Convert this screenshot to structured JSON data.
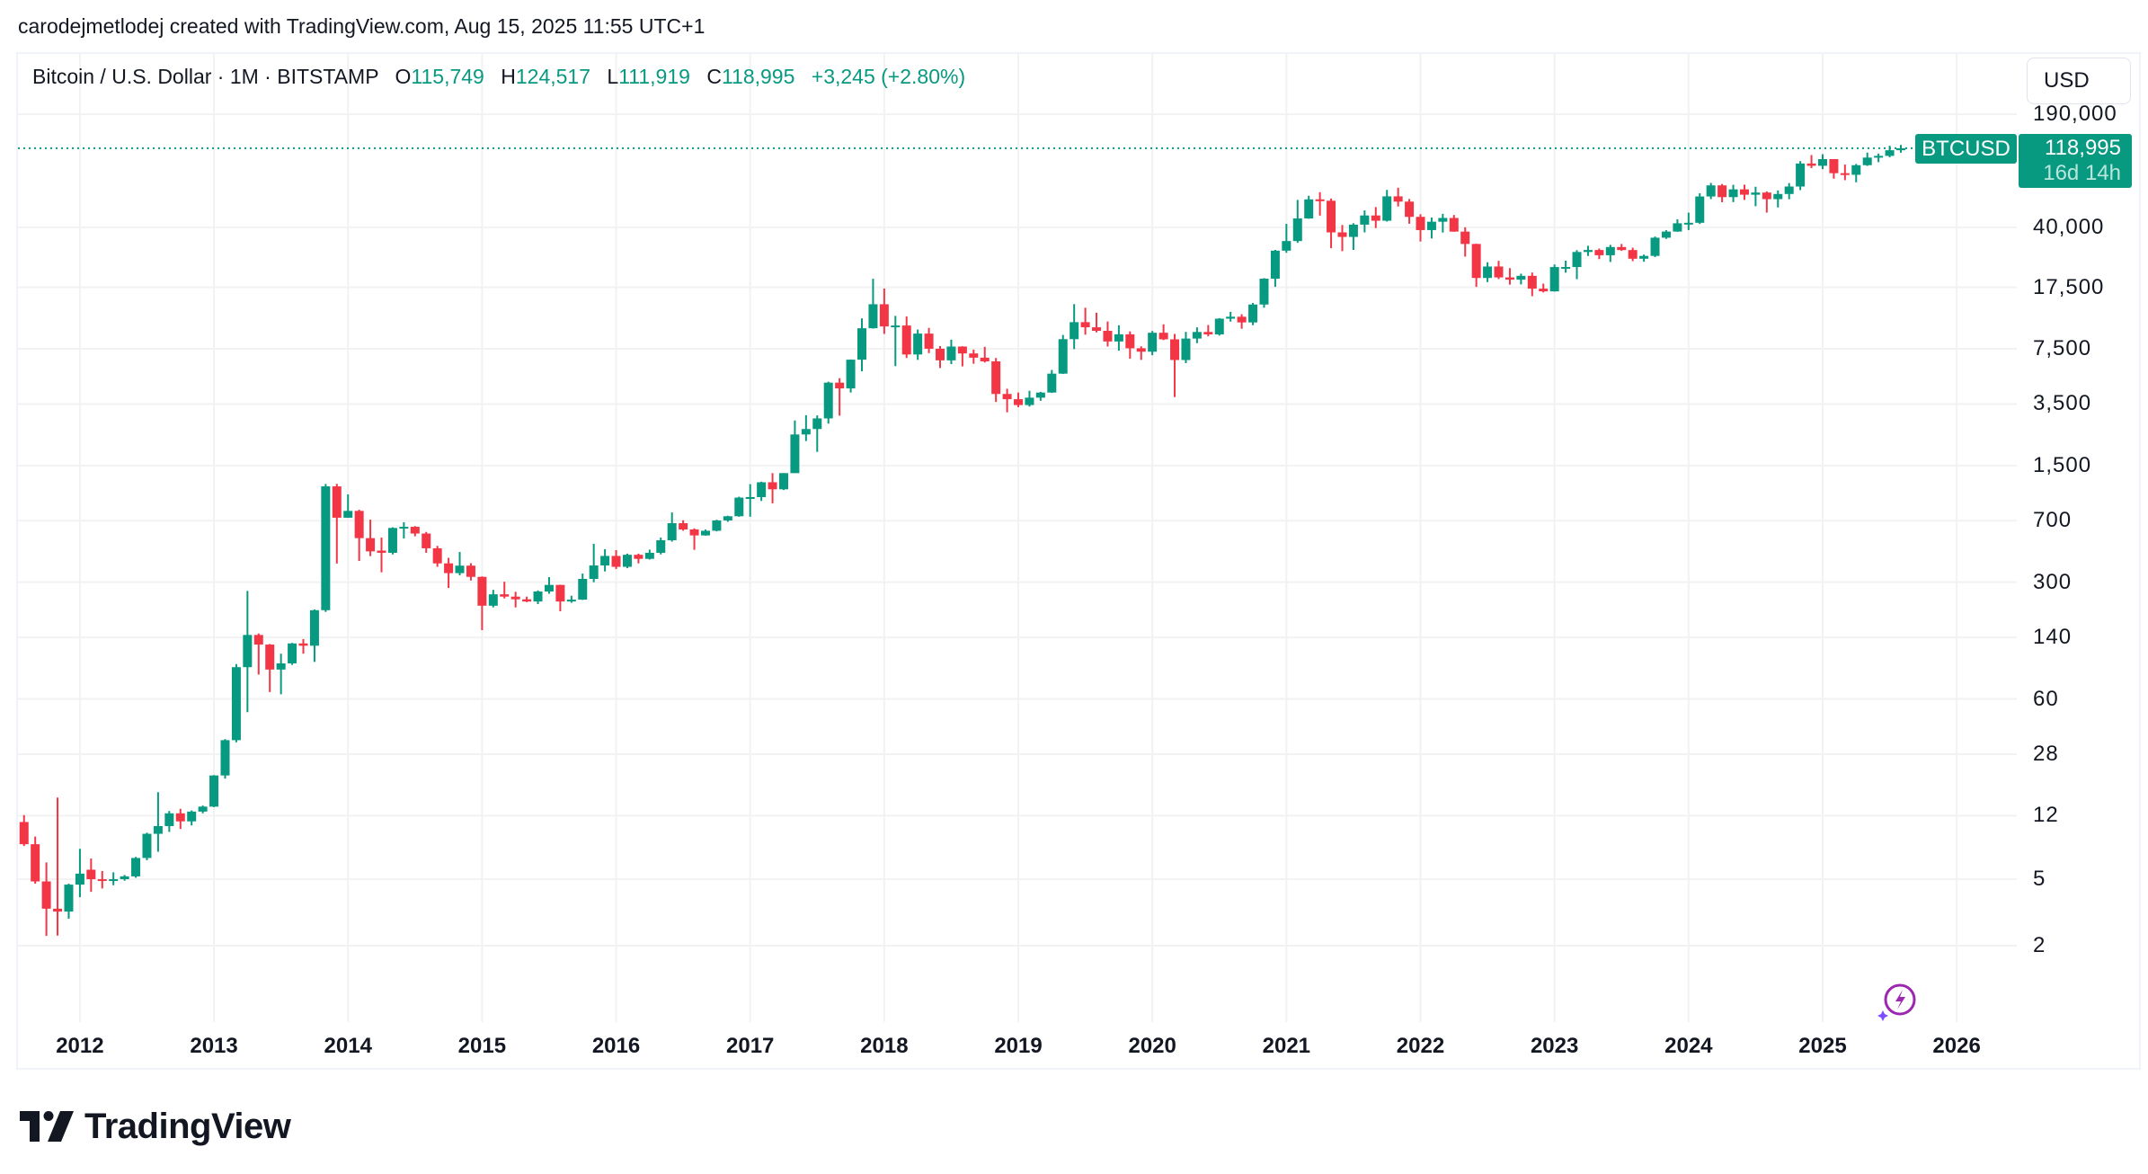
{
  "credit": "carodejmetlodej created with TradingView.com, Aug 15, 2025 11:55 UTC+1",
  "legend": {
    "symbol_desc": "Bitcoin / U.S. Dollar · 1M · BITSTAMP",
    "o_label": "O",
    "o": "115,749",
    "h_label": "H",
    "h": "124,517",
    "l_label": "L",
    "l": "111,919",
    "c_label": "C",
    "c": "118,995",
    "change": "+3,245 (+2.80%)"
  },
  "currency_button": "USD",
  "last_price": {
    "symbol": "BTCUSD",
    "price": "118,995",
    "countdown": "16d 14h",
    "value": 118995
  },
  "brand": "TradingView",
  "colors": {
    "up": "#089981",
    "down": "#F23645",
    "grid": "#f2f2f2",
    "accent_icon": "#9c27b0"
  },
  "icons": {
    "logo": "tradingview-logo-icon",
    "bolt": "lightning-sparkle-icon"
  },
  "chart_data": {
    "type": "candlestick",
    "interval": "1M",
    "y_scale": "log",
    "ylim": [
      1.2,
      260000
    ],
    "grid": true,
    "ytick_labels": [
      "190,000",
      "40,000",
      "17,500",
      "7,500",
      "3,500",
      "1,500",
      "700",
      "300",
      "140",
      "60",
      "28",
      "12",
      "5",
      "2"
    ],
    "ytick_values": [
      190000,
      40000,
      17500,
      7500,
      3500,
      1500,
      700,
      300,
      140,
      60,
      28,
      12,
      5,
      2
    ],
    "xtick_labels": [
      "2012",
      "2013",
      "2014",
      "2015",
      "2016",
      "2017",
      "2018",
      "2019",
      "2020",
      "2021",
      "2022",
      "2023",
      "2024",
      "2025",
      "2026"
    ],
    "columns": [
      "month",
      "open",
      "high",
      "low",
      "close"
    ],
    "candles": [
      [
        "2011-08",
        11,
        12.1,
        7.9,
        8.1
      ],
      [
        "2011-09",
        8.1,
        9.0,
        4.7,
        4.85
      ],
      [
        "2011-10",
        4.85,
        6.3,
        2.29,
        3.33
      ],
      [
        "2011-11",
        3.33,
        15.4,
        2.3,
        3.2
      ],
      [
        "2011-12",
        3.2,
        4.7,
        2.9,
        4.64
      ],
      [
        "2012-01",
        4.64,
        7.6,
        3.9,
        5.4
      ],
      [
        "2012-02",
        5.7,
        6.65,
        4.2,
        5.0
      ],
      [
        "2012-03",
        5.0,
        5.6,
        4.4,
        4.9
      ],
      [
        "2012-04",
        4.9,
        5.5,
        4.6,
        5.0
      ],
      [
        "2012-05",
        5.0,
        5.3,
        4.9,
        5.2
      ],
      [
        "2012-06",
        5.2,
        6.8,
        5.1,
        6.7
      ],
      [
        "2012-07",
        6.7,
        9.5,
        6.5,
        9.35
      ],
      [
        "2012-08",
        9.35,
        16.6,
        7.3,
        10.4
      ],
      [
        "2012-09",
        10.4,
        12.8,
        9.6,
        12.4
      ],
      [
        "2012-10",
        12.4,
        13.2,
        10.0,
        11.1
      ],
      [
        "2012-11",
        11.1,
        12.9,
        10.5,
        12.7
      ],
      [
        "2012-12",
        12.7,
        13.8,
        12.4,
        13.6
      ],
      [
        "2013-01",
        13.6,
        21,
        13.5,
        20.9
      ],
      [
        "2013-02",
        20.9,
        34.5,
        20,
        34
      ],
      [
        "2013-03",
        34,
        97,
        33,
        93
      ],
      [
        "2013-04",
        93,
        266,
        50,
        145
      ],
      [
        "2013-05",
        145,
        148,
        84,
        127
      ],
      [
        "2013-06",
        127,
        128,
        66,
        90
      ],
      [
        "2013-07",
        90,
        112,
        64,
        98
      ],
      [
        "2013-08",
        98,
        130,
        96,
        129
      ],
      [
        "2013-09",
        129,
        137,
        112,
        125
      ],
      [
        "2013-10",
        125,
        206,
        100,
        204
      ],
      [
        "2013-11",
        204,
        1163,
        199,
        1125
      ],
      [
        "2013-12",
        1125,
        1165,
        388,
        730
      ],
      [
        "2014-01",
        730,
        1007,
        730,
        802
      ],
      [
        "2014-02",
        802,
        815,
        402,
        551
      ],
      [
        "2014-03",
        551,
        711,
        430,
        459
      ],
      [
        "2014-04",
        464,
        555,
        344,
        450
      ],
      [
        "2014-05",
        450,
        640,
        440,
        634
      ],
      [
        "2014-06",
        634,
        686,
        548,
        644
      ],
      [
        "2014-07",
        644,
        650,
        565,
        587
      ],
      [
        "2014-08",
        587,
        600,
        450,
        479
      ],
      [
        "2014-09",
        479,
        495,
        371,
        389
      ],
      [
        "2014-10",
        389,
        420,
        277,
        340
      ],
      [
        "2014-11",
        340,
        455,
        330,
        377
      ],
      [
        "2014-12",
        377,
        390,
        307,
        323
      ],
      [
        "2015-01",
        323,
        325,
        155,
        217
      ],
      [
        "2015-02",
        217,
        270,
        212,
        254
      ],
      [
        "2015-03",
        254,
        302,
        240,
        246
      ],
      [
        "2015-04",
        246,
        263,
        212,
        237
      ],
      [
        "2015-05",
        237,
        246,
        228,
        230
      ],
      [
        "2015-06",
        230,
        268,
        222,
        264
      ],
      [
        "2015-07",
        264,
        322,
        256,
        289
      ],
      [
        "2015-08",
        289,
        290,
        201,
        230
      ],
      [
        "2015-09",
        230,
        249,
        226,
        236
      ],
      [
        "2015-10",
        236,
        338,
        235,
        314
      ],
      [
        "2015-11",
        314,
        509,
        300,
        378
      ],
      [
        "2015-12",
        378,
        473,
        348,
        431
      ],
      [
        "2016-01",
        431,
        467,
        360,
        371
      ],
      [
        "2016-02",
        371,
        445,
        364,
        438
      ],
      [
        "2016-03",
        438,
        445,
        389,
        414
      ],
      [
        "2016-04",
        414,
        470,
        410,
        450
      ],
      [
        "2016-05",
        450,
        555,
        440,
        535
      ],
      [
        "2016-06",
        535,
        785,
        525,
        677
      ],
      [
        "2016-07",
        677,
        705,
        610,
        621
      ],
      [
        "2016-08",
        621,
        630,
        469,
        572
      ],
      [
        "2016-09",
        572,
        620,
        570,
        610
      ],
      [
        "2016-10",
        610,
        710,
        605,
        703
      ],
      [
        "2016-11",
        703,
        750,
        690,
        745
      ],
      [
        "2016-12",
        745,
        975,
        740,
        963
      ],
      [
        "2017-01",
        963,
        1160,
        740,
        970
      ],
      [
        "2017-02",
        970,
        1200,
        920,
        1190
      ],
      [
        "2017-03",
        1190,
        1350,
        890,
        1080
      ],
      [
        "2017-04",
        1080,
        1350,
        1070,
        1350
      ],
      [
        "2017-05",
        1350,
        2790,
        1350,
        2300
      ],
      [
        "2017-06",
        2300,
        3000,
        2100,
        2480
      ],
      [
        "2017-07",
        2480,
        2990,
        1810,
        2870
      ],
      [
        "2017-08",
        2870,
        4760,
        2670,
        4700
      ],
      [
        "2017-09",
        4700,
        5000,
        2980,
        4340
      ],
      [
        "2017-10",
        4340,
        6470,
        4100,
        6450
      ],
      [
        "2017-11",
        6450,
        11400,
        5500,
        9950
      ],
      [
        "2017-12",
        9950,
        19666,
        9900,
        13850
      ],
      [
        "2018-01",
        13850,
        17200,
        9200,
        10200
      ],
      [
        "2018-02",
        10200,
        11800,
        5900,
        10330
      ],
      [
        "2018-03",
        10330,
        11700,
        6600,
        6930
      ],
      [
        "2018-04",
        6930,
        9770,
        6430,
        9240
      ],
      [
        "2018-05",
        9240,
        10000,
        7060,
        7500
      ],
      [
        "2018-06",
        7500,
        7780,
        5750,
        6390
      ],
      [
        "2018-07",
        6390,
        8500,
        6070,
        7730
      ],
      [
        "2018-08",
        7730,
        7760,
        5880,
        7030
      ],
      [
        "2018-09",
        7030,
        7410,
        6100,
        6630
      ],
      [
        "2018-10",
        6630,
        7700,
        6200,
        6300
      ],
      [
        "2018-11",
        6300,
        6600,
        3600,
        4020
      ],
      [
        "2018-12",
        4020,
        4320,
        3120,
        3740
      ],
      [
        "2019-01",
        3740,
        4100,
        3350,
        3450
      ],
      [
        "2019-02",
        3450,
        4200,
        3380,
        3820
      ],
      [
        "2019-03",
        3820,
        4140,
        3660,
        4100
      ],
      [
        "2019-04",
        4100,
        5600,
        4080,
        5320
      ],
      [
        "2019-05",
        5320,
        9070,
        5300,
        8560
      ],
      [
        "2019-06",
        8560,
        13880,
        7460,
        10820
      ],
      [
        "2019-07",
        10820,
        13200,
        9100,
        10080
      ],
      [
        "2019-08",
        10080,
        12330,
        9400,
        9600
      ],
      [
        "2019-09",
        9600,
        10920,
        7730,
        8290
      ],
      [
        "2019-10",
        8290,
        10370,
        7300,
        9150
      ],
      [
        "2019-11",
        9150,
        9530,
        6540,
        7550
      ],
      [
        "2019-12",
        7550,
        7750,
        6430,
        7200
      ],
      [
        "2020-01",
        7200,
        9580,
        6860,
        9350
      ],
      [
        "2020-02",
        9350,
        10500,
        8450,
        8540
      ],
      [
        "2020-03",
        8540,
        9200,
        3850,
        6420
      ],
      [
        "2020-04",
        6420,
        9460,
        6150,
        8630
      ],
      [
        "2020-05",
        8630,
        10070,
        8100,
        9450
      ],
      [
        "2020-06",
        9450,
        10400,
        8900,
        9140
      ],
      [
        "2020-07",
        9140,
        11440,
        8990,
        11350
      ],
      [
        "2020-08",
        11350,
        12470,
        10900,
        11660
      ],
      [
        "2020-09",
        11660,
        12070,
        9880,
        10780
      ],
      [
        "2020-10",
        10780,
        14100,
        10380,
        13800
      ],
      [
        "2020-11",
        13800,
        19860,
        13200,
        19700
      ],
      [
        "2020-12",
        19700,
        29300,
        17600,
        28990
      ],
      [
        "2021-01",
        28990,
        41950,
        28150,
        33100
      ],
      [
        "2021-02",
        33100,
        58350,
        32300,
        45200
      ],
      [
        "2021-03",
        45200,
        61800,
        45000,
        58800
      ],
      [
        "2021-04",
        58800,
        64900,
        47000,
        57700
      ],
      [
        "2021-05",
        57700,
        59500,
        30000,
        37300
      ],
      [
        "2021-06",
        37300,
        41300,
        28800,
        35040
      ],
      [
        "2021-07",
        35040,
        42300,
        29300,
        41500
      ],
      [
        "2021-08",
        41500,
        50500,
        37300,
        47100
      ],
      [
        "2021-09",
        47100,
        52900,
        39600,
        43800
      ],
      [
        "2021-10",
        43800,
        67000,
        43300,
        61300
      ],
      [
        "2021-11",
        61300,
        69000,
        53300,
        57000
      ],
      [
        "2021-12",
        57000,
        59100,
        42000,
        46200
      ],
      [
        "2022-01",
        46200,
        47900,
        32900,
        38500
      ],
      [
        "2022-02",
        38500,
        45800,
        34300,
        43200
      ],
      [
        "2022-03",
        43200,
        48200,
        37200,
        45500
      ],
      [
        "2022-04",
        45500,
        47400,
        37600,
        37700
      ],
      [
        "2022-05",
        37700,
        40000,
        26700,
        31800
      ],
      [
        "2022-06",
        31800,
        31900,
        17600,
        19900
      ],
      [
        "2022-07",
        19900,
        24700,
        18800,
        23300
      ],
      [
        "2022-08",
        23300,
        25200,
        19600,
        20050
      ],
      [
        "2022-09",
        20050,
        22800,
        18150,
        19430
      ],
      [
        "2022-10",
        19430,
        21100,
        18200,
        20490
      ],
      [
        "2022-11",
        20490,
        21450,
        15480,
        17170
      ],
      [
        "2022-12",
        17170,
        18400,
        16300,
        16540
      ],
      [
        "2023-01",
        16540,
        23950,
        16500,
        23130
      ],
      [
        "2023-02",
        23130,
        25250,
        21400,
        23140
      ],
      [
        "2023-03",
        23140,
        29200,
        19570,
        28470
      ],
      [
        "2023-04",
        28470,
        31000,
        26950,
        29250
      ],
      [
        "2023-05",
        29250,
        29850,
        25800,
        27220
      ],
      [
        "2023-06",
        27220,
        31400,
        24800,
        30480
      ],
      [
        "2023-07",
        30480,
        31800,
        28900,
        29230
      ],
      [
        "2023-08",
        29230,
        30200,
        25100,
        25940
      ],
      [
        "2023-09",
        25940,
        27500,
        24900,
        26970
      ],
      [
        "2023-10",
        26970,
        35200,
        26550,
        34660
      ],
      [
        "2023-11",
        34660,
        38450,
        34100,
        37720
      ],
      [
        "2023-12",
        37720,
        44700,
        37600,
        42280
      ],
      [
        "2024-01",
        42280,
        48970,
        38500,
        42580
      ],
      [
        "2024-02",
        42580,
        64000,
        41900,
        61200
      ],
      [
        "2024-03",
        61200,
        73800,
        59000,
        71300
      ],
      [
        "2024-04",
        71300,
        72700,
        56500,
        60650
      ],
      [
        "2024-05",
        60650,
        71900,
        56600,
        67500
      ],
      [
        "2024-06",
        67500,
        72000,
        58400,
        62700
      ],
      [
        "2024-07",
        62700,
        70000,
        53500,
        64600
      ],
      [
        "2024-08",
        64600,
        65600,
        49000,
        58970
      ],
      [
        "2024-09",
        58970,
        66500,
        52600,
        63330
      ],
      [
        "2024-10",
        63330,
        73600,
        58900,
        70200
      ],
      [
        "2024-11",
        70200,
        99600,
        66800,
        96400
      ],
      [
        "2024-12",
        96400,
        108300,
        90500,
        93400
      ],
      [
        "2025-01",
        93400,
        109600,
        89200,
        102400
      ],
      [
        "2025-02",
        102400,
        102500,
        78200,
        84350
      ],
      [
        "2025-03",
        84350,
        95000,
        76600,
        82550
      ],
      [
        "2025-04",
        82550,
        95800,
        74400,
        94200
      ],
      [
        "2025-05",
        94200,
        112000,
        93300,
        104600
      ],
      [
        "2025-06",
        104600,
        110500,
        98200,
        107100
      ],
      [
        "2025-07",
        107100,
        123200,
        105100,
        115749
      ],
      [
        "2025-08",
        115749,
        124517,
        111919,
        118995
      ]
    ]
  }
}
